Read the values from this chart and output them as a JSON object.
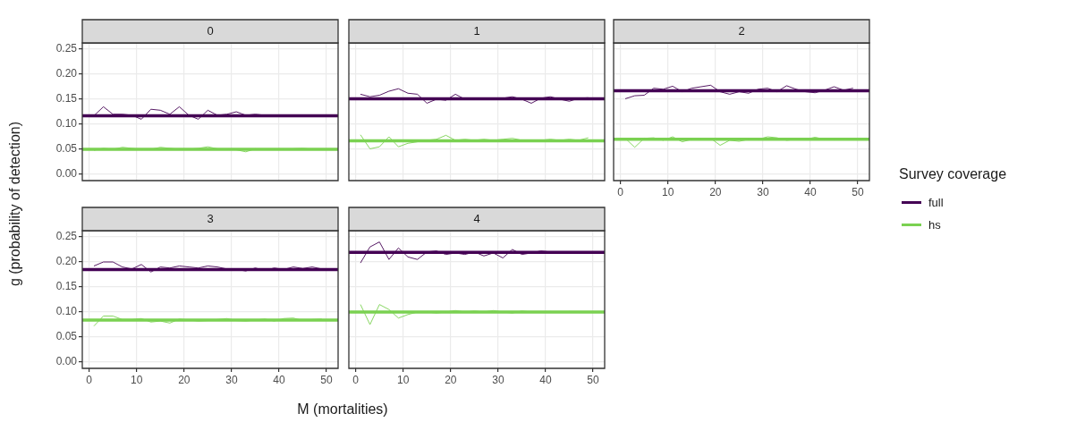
{
  "chart_data": [
    {
      "type": "line",
      "title": "0",
      "ylabel": "g (probability of detection)",
      "xlabel": "M (mortalities)",
      "legend": "right",
      "legend_title": "Survey coverage",
      "tick_labels": "y",
      "grid": true,
      "x": [
        1,
        3,
        5,
        7,
        9,
        11,
        13,
        15,
        17,
        19,
        21,
        23,
        25,
        27,
        29,
        31,
        33,
        35,
        37,
        39,
        41,
        43,
        45,
        47,
        49
      ],
      "series": [
        {
          "name": "full",
          "color": "#440154",
          "values": [
            0.117,
            0.135,
            0.12,
            0.12,
            0.118,
            0.11,
            0.13,
            0.128,
            0.12,
            0.135,
            0.118,
            0.11,
            0.128,
            0.118,
            0.12,
            0.125,
            0.118,
            0.12,
            0.118,
            0.117,
            0.116,
            0.118,
            0.118,
            0.117,
            0.118
          ]
        },
        {
          "name": "hs",
          "color": "#7ad151",
          "values": [
            0.048,
            0.052,
            0.05,
            0.054,
            0.052,
            0.049,
            0.05,
            0.054,
            0.052,
            0.05,
            0.05,
            0.052,
            0.055,
            0.051,
            0.05,
            0.049,
            0.045,
            0.051,
            0.05,
            0.05,
            0.05,
            0.051,
            0.052,
            0.05,
            0.05
          ]
        }
      ],
      "ref_lines": [
        {
          "axis": "y",
          "value": 0.117,
          "color": "#440154"
        },
        {
          "axis": "y",
          "value": 0.05,
          "color": "#7ad151"
        }
      ],
      "xlim": [
        -1.45,
        52.45
      ],
      "ylim": [
        -0.0125,
        0.2625
      ],
      "xticks": [
        0,
        10,
        20,
        30,
        40,
        50
      ],
      "yticks": [
        {
          "value": 0,
          "label": "0.00"
        },
        {
          "value": 0.05,
          "label": "0.05"
        },
        {
          "value": 0.1,
          "label": "0.10"
        },
        {
          "value": 0.15,
          "label": "0.15"
        },
        {
          "value": 0.2,
          "label": "0.20"
        },
        {
          "value": 0.25,
          "label": "0.25"
        }
      ]
    },
    {
      "type": "line",
      "title": "1",
      "tick_labels": false,
      "grid": true,
      "x": [
        1,
        3,
        5,
        7,
        9,
        11,
        13,
        15,
        17,
        19,
        21,
        23,
        25,
        27,
        29,
        31,
        33,
        35,
        37,
        39,
        41,
        43,
        45,
        47,
        49
      ],
      "series": [
        {
          "name": "full",
          "color": "#440154",
          "values": [
            0.16,
            0.155,
            0.158,
            0.166,
            0.171,
            0.162,
            0.16,
            0.142,
            0.15,
            0.148,
            0.16,
            0.15,
            0.15,
            0.151,
            0.152,
            0.152,
            0.155,
            0.15,
            0.142,
            0.152,
            0.155,
            0.15,
            0.146,
            0.152,
            0.153
          ]
        },
        {
          "name": "hs",
          "color": "#7ad151",
          "values": [
            0.079,
            0.051,
            0.055,
            0.075,
            0.055,
            0.062,
            0.065,
            0.068,
            0.07,
            0.078,
            0.068,
            0.07,
            0.068,
            0.07,
            0.068,
            0.07,
            0.072,
            0.068,
            0.067,
            0.068,
            0.07,
            0.068,
            0.07,
            0.068,
            0.073
          ]
        }
      ],
      "ref_lines": [
        {
          "axis": "y",
          "value": 0.151,
          "color": "#440154"
        },
        {
          "axis": "y",
          "value": 0.067,
          "color": "#7ad151"
        }
      ],
      "xlim": [
        -1.45,
        52.45
      ],
      "ylim": [
        -0.0125,
        0.2625
      ],
      "xticks": [
        0,
        10,
        20,
        30,
        40,
        50
      ],
      "yticks": [
        {
          "value": 0,
          "label": "0.00"
        },
        {
          "value": 0.05,
          "label": "0.05"
        },
        {
          "value": 0.1,
          "label": "0.10"
        },
        {
          "value": 0.15,
          "label": "0.15"
        },
        {
          "value": 0.2,
          "label": "0.20"
        },
        {
          "value": 0.25,
          "label": "0.25"
        }
      ]
    },
    {
      "type": "line",
      "title": "2",
      "tick_labels": "x",
      "grid": true,
      "x": [
        1,
        3,
        5,
        7,
        9,
        11,
        13,
        15,
        17,
        19,
        21,
        23,
        25,
        27,
        29,
        31,
        33,
        35,
        37,
        39,
        41,
        43,
        45,
        47,
        49
      ],
      "series": [
        {
          "name": "full",
          "color": "#440154",
          "values": [
            0.151,
            0.157,
            0.158,
            0.172,
            0.17,
            0.176,
            0.165,
            0.172,
            0.175,
            0.178,
            0.165,
            0.16,
            0.165,
            0.162,
            0.17,
            0.172,
            0.165,
            0.177,
            0.17,
            0.165,
            0.163,
            0.168,
            0.175,
            0.168,
            0.172
          ]
        },
        {
          "name": "hs",
          "color": "#7ad151",
          "values": [
            0.072,
            0.054,
            0.072,
            0.073,
            0.068,
            0.075,
            0.065,
            0.07,
            0.07,
            0.072,
            0.058,
            0.068,
            0.066,
            0.07,
            0.07,
            0.075,
            0.073,
            0.068,
            0.07,
            0.07,
            0.074,
            0.07,
            0.07,
            0.07,
            0.072
          ]
        }
      ],
      "ref_lines": [
        {
          "axis": "y",
          "value": 0.167,
          "color": "#440154"
        },
        {
          "axis": "y",
          "value": 0.07,
          "color": "#7ad151"
        }
      ],
      "xlim": [
        -1.45,
        52.45
      ],
      "ylim": [
        -0.0125,
        0.2625
      ],
      "xticks": [
        0,
        10,
        20,
        30,
        40,
        50
      ],
      "yticks": [
        {
          "value": 0,
          "label": "0.00"
        },
        {
          "value": 0.05,
          "label": "0.05"
        },
        {
          "value": 0.1,
          "label": "0.10"
        },
        {
          "value": 0.15,
          "label": "0.15"
        },
        {
          "value": 0.2,
          "label": "0.20"
        },
        {
          "value": 0.25,
          "label": "0.25"
        }
      ]
    },
    {
      "type": "line",
      "title": "3",
      "grid": true,
      "x": [
        1,
        3,
        5,
        7,
        9,
        11,
        13,
        15,
        17,
        19,
        21,
        23,
        25,
        27,
        29,
        31,
        33,
        35,
        37,
        39,
        41,
        43,
        45,
        47,
        49
      ],
      "series": [
        {
          "name": "full",
          "color": "#440154",
          "values": [
            0.192,
            0.2,
            0.2,
            0.19,
            0.186,
            0.195,
            0.18,
            0.19,
            0.188,
            0.192,
            0.19,
            0.188,
            0.192,
            0.19,
            0.186,
            0.185,
            0.182,
            0.188,
            0.183,
            0.188,
            0.185,
            0.19,
            0.187,
            0.19,
            0.186
          ]
        },
        {
          "name": "hs",
          "color": "#7ad151",
          "values": [
            0.072,
            0.092,
            0.092,
            0.085,
            0.085,
            0.087,
            0.08,
            0.082,
            0.078,
            0.086,
            0.084,
            0.082,
            0.083,
            0.085,
            0.087,
            0.083,
            0.082,
            0.084,
            0.086,
            0.082,
            0.087,
            0.088,
            0.083,
            0.085,
            0.086
          ]
        }
      ],
      "ref_lines": [
        {
          "axis": "y",
          "value": 0.185,
          "color": "#440154"
        },
        {
          "axis": "y",
          "value": 0.084,
          "color": "#7ad151"
        }
      ],
      "xlim": [
        -1.45,
        52.45
      ],
      "ylim": [
        -0.0125,
        0.2625
      ],
      "xticks": [
        0,
        10,
        20,
        30,
        40,
        50
      ],
      "yticks": [
        {
          "value": 0,
          "label": "0.00"
        },
        {
          "value": 0.05,
          "label": "0.05"
        },
        {
          "value": 0.1,
          "label": "0.10"
        },
        {
          "value": 0.15,
          "label": "0.15"
        },
        {
          "value": 0.2,
          "label": "0.20"
        },
        {
          "value": 0.25,
          "label": "0.25"
        }
      ]
    },
    {
      "type": "line",
      "title": "4",
      "tick_labels": "x",
      "grid": true,
      "x": [
        1,
        3,
        5,
        7,
        9,
        11,
        13,
        15,
        17,
        19,
        21,
        23,
        25,
        27,
        29,
        31,
        33,
        35,
        37,
        39,
        41,
        43,
        45,
        47,
        49
      ],
      "series": [
        {
          "name": "full",
          "color": "#440154",
          "values": [
            0.198,
            0.23,
            0.24,
            0.205,
            0.228,
            0.21,
            0.205,
            0.22,
            0.222,
            0.215,
            0.218,
            0.215,
            0.22,
            0.212,
            0.218,
            0.208,
            0.225,
            0.215,
            0.218,
            0.222,
            0.22,
            0.217,
            0.22,
            0.218,
            0.22
          ]
        },
        {
          "name": "hs",
          "color": "#7ad151",
          "values": [
            0.115,
            0.075,
            0.115,
            0.105,
            0.088,
            0.095,
            0.1,
            0.1,
            0.098,
            0.1,
            0.103,
            0.1,
            0.102,
            0.1,
            0.103,
            0.1,
            0.098,
            0.102,
            0.1,
            0.1,
            0.101,
            0.1,
            0.101,
            0.099,
            0.1
          ]
        }
      ],
      "ref_lines": [
        {
          "axis": "y",
          "value": 0.219,
          "color": "#440154"
        },
        {
          "axis": "y",
          "value": 0.1,
          "color": "#7ad151"
        }
      ],
      "xlim": [
        -1.45,
        52.45
      ],
      "ylim": [
        -0.0125,
        0.2625
      ],
      "xticks": [
        0,
        10,
        20,
        30,
        40,
        50
      ],
      "yticks": [
        {
          "value": 0,
          "label": "0.00"
        },
        {
          "value": 0.05,
          "label": "0.05"
        },
        {
          "value": 0.1,
          "label": "0.10"
        },
        {
          "value": 0.15,
          "label": "0.15"
        },
        {
          "value": 0.2,
          "label": "0.20"
        },
        {
          "value": 0.25,
          "label": "0.25"
        }
      ]
    }
  ]
}
